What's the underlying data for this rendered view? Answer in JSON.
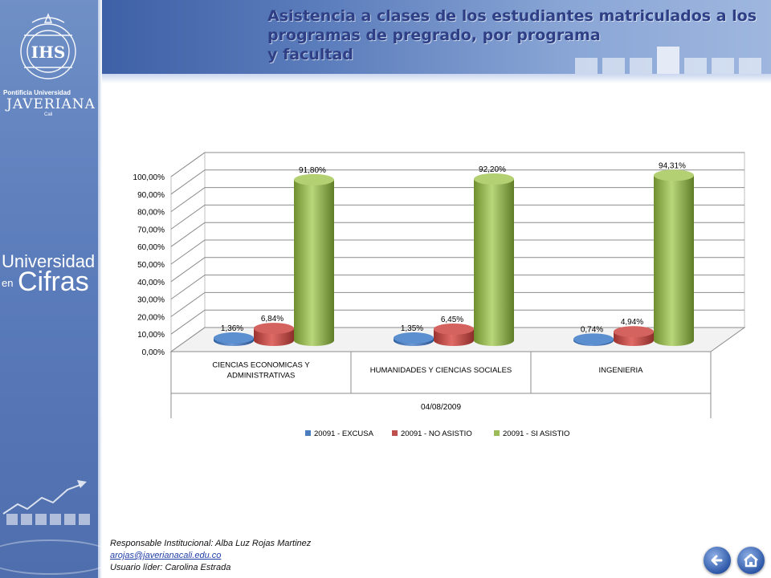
{
  "title": {
    "line1": "Asistencia a clases de los estudiantes matriculados  a los",
    "line2": "programas de pregrado, por programa",
    "line3": " y facultad"
  },
  "sidebar": {
    "logo": {
      "line1": "Pontificia Universidad",
      "line2": "JAVERIANA",
      "line3": "Cali"
    },
    "section": {
      "word1": "Universidad",
      "word2": "en",
      "word3": "Cifras"
    }
  },
  "chart_data": {
    "type": "bar",
    "categories": [
      "CIENCIAS ECONOMICAS Y ADMINISTRATIVAS",
      "HUMANIDADES Y CIENCIAS SOCIALES",
      "INGENIERIA"
    ],
    "category_lines": [
      [
        "CIENCIAS ECONOMICAS Y",
        "ADMINISTRATIVAS"
      ],
      [
        "HUMANIDADES Y CIENCIAS SOCIALES"
      ],
      [
        "INGENIERIA"
      ]
    ],
    "xlabel": "04/08/2009",
    "ylim": [
      0,
      100
    ],
    "yticks": [
      "0,00%",
      "10,00%",
      "20,00%",
      "30,00%",
      "40,00%",
      "50,00%",
      "60,00%",
      "70,00%",
      "80,00%",
      "90,00%",
      "100,00%"
    ],
    "series": [
      {
        "name": "20091 - EXCUSA",
        "color": "#4a7ebf",
        "values": [
          1.36,
          1.35,
          0.74
        ],
        "labels": [
          "1,36%",
          "1,35%",
          "0,74%"
        ]
      },
      {
        "name": "20091 - NO ASISTIO",
        "color": "#c0504d",
        "values": [
          6.84,
          6.45,
          4.94
        ],
        "labels": [
          "6,84%",
          "6,45%",
          "4,94%"
        ]
      },
      {
        "name": "20091 - SI ASISTIO",
        "color": "#9bbb59",
        "values": [
          91.8,
          92.2,
          94.31
        ],
        "labels": [
          "91,80%",
          "92,20%",
          "94,31%"
        ]
      }
    ],
    "legend_position": "bottom",
    "grid": true
  },
  "footer": {
    "responsable": "Responsable  Institucional: Alba Luz Rojas Martinez",
    "email": "arojas@javerianacali.edu.co",
    "usuario": "Usuario líder: Carolina Estrada"
  },
  "nav": {
    "back_icon": "arrow-left-icon",
    "home_icon": "home-icon"
  }
}
